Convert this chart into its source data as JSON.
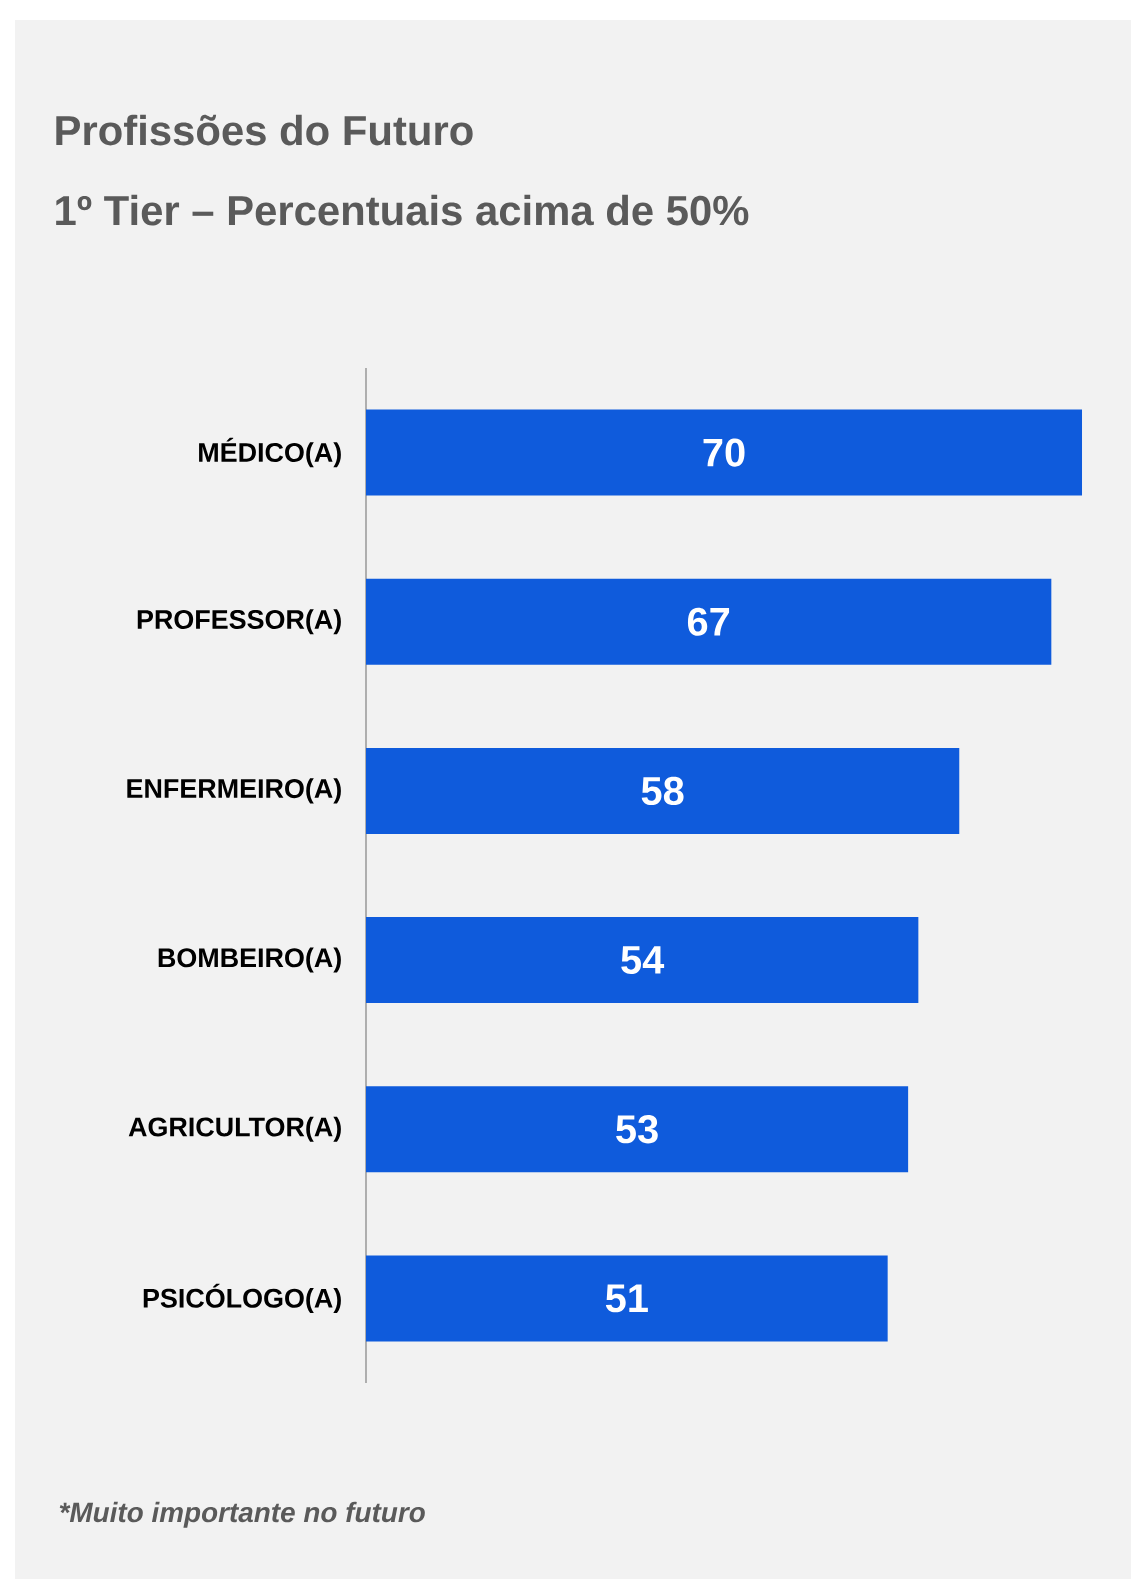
{
  "chart_data": {
    "type": "bar",
    "orientation": "horizontal",
    "title": "Profissões do Futuro",
    "subtitle": "1º Tier – Percentuais acima de 50%",
    "categories": [
      "MÉDICO(A)",
      "PROFESSOR(A)",
      "ENFERMEIRO(A)",
      "BOMBEIRO(A)",
      "AGRICULTOR(A)",
      "PSICÓLOGO(A)"
    ],
    "values": [
      70,
      67,
      58,
      54,
      53,
      51
    ],
    "color": "#0f5bdc",
    "data_labels": true,
    "tick_labels": "y",
    "annotations": [
      "*Muito importante no futuro"
    ]
  }
}
